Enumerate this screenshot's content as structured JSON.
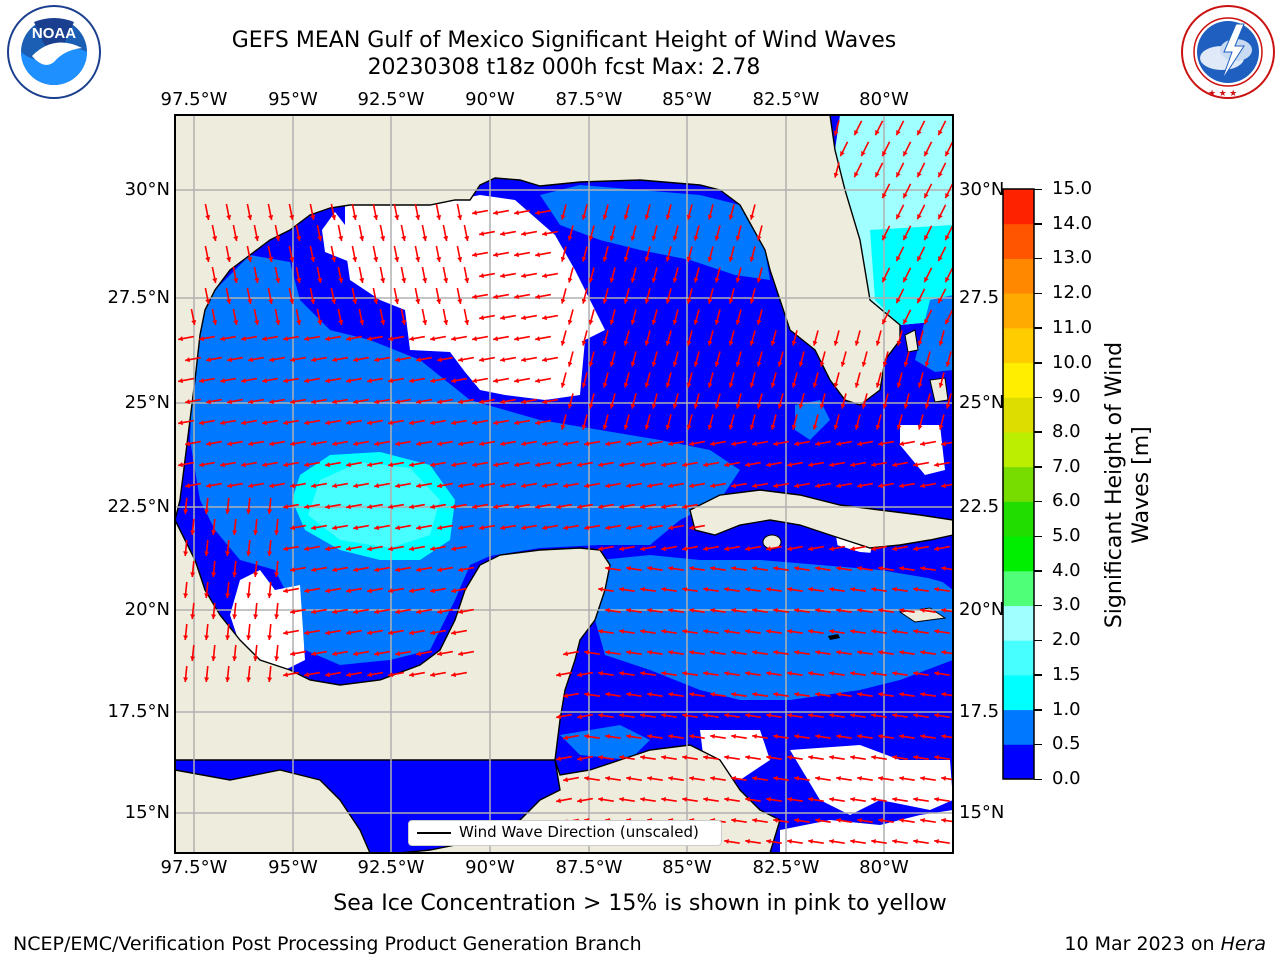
{
  "header": {
    "title_line1": "GEFS MEAN Gulf of Mexico Significant Height of Wind Waves",
    "title_line2": "20230308 t18z 000h fcst   Max: 2.78"
  },
  "logos": {
    "noaa": {
      "name": "NOAA",
      "ring_text": "NATIONAL OCEANIC AND ATMOSPHERIC ADMINISTRATION · U.S. DEPARTMENT OF COMMERCE"
    },
    "nws": {
      "ring_text": "NATIONAL WEATHER SERVICE"
    }
  },
  "map": {
    "lon_labels": [
      "97.5°W",
      "95°W",
      "92.5°W",
      "90°W",
      "87.5°W",
      "85°W",
      "82.5°W",
      "80°W"
    ],
    "lat_labels_left": [
      "30°N",
      "27.5°N",
      "25°N",
      "22.5°N",
      "20°N",
      "17.5°N",
      "15°N"
    ],
    "lat_labels_right": [
      "30°N",
      "27.5",
      "25°N",
      "22.5",
      "20°N",
      "17.5",
      "15°N"
    ],
    "legend_label": "Wind Wave Direction (unscaled)",
    "colors": {
      "land": "#eeeddd",
      "level_0": "#0000ff",
      "level_05": "#0078ff",
      "level_10": "#00ffff",
      "level_15": "#48ffff",
      "level_20": "#a0ffff",
      "arrow": "#ff0000"
    }
  },
  "colorbar": {
    "ticks": [
      "15.0",
      "14.0",
      "13.0",
      "12.0",
      "11.0",
      "10.0",
      "9.0",
      "8.0",
      "7.0",
      "6.0",
      "5.0",
      "4.0",
      "3.0",
      "2.0",
      "1.5",
      "1.0",
      "0.5",
      "0.0"
    ],
    "colors_bottom_to_top": [
      "#0000ff",
      "#0078ff",
      "#00ffff",
      "#48ffff",
      "#a0ffff",
      "#50ff78",
      "#00ee00",
      "#22dd00",
      "#77dd00",
      "#bbee00",
      "#dddd00",
      "#ffee00",
      "#ffcc00",
      "#ffaa00",
      "#ff8800",
      "#ff5500",
      "#ff2200"
    ],
    "label_line1": "Significant Height of Wind",
    "label_line2": "Waves [m]"
  },
  "notes": {
    "sea_ice": "Sea Ice Concentration > 15% is shown in pink to yellow"
  },
  "footer": {
    "left": "NCEP/EMC/Verification Post Processing Product Generation Branch",
    "date": "10 Mar 2023 on ",
    "machine": "Hera"
  }
}
